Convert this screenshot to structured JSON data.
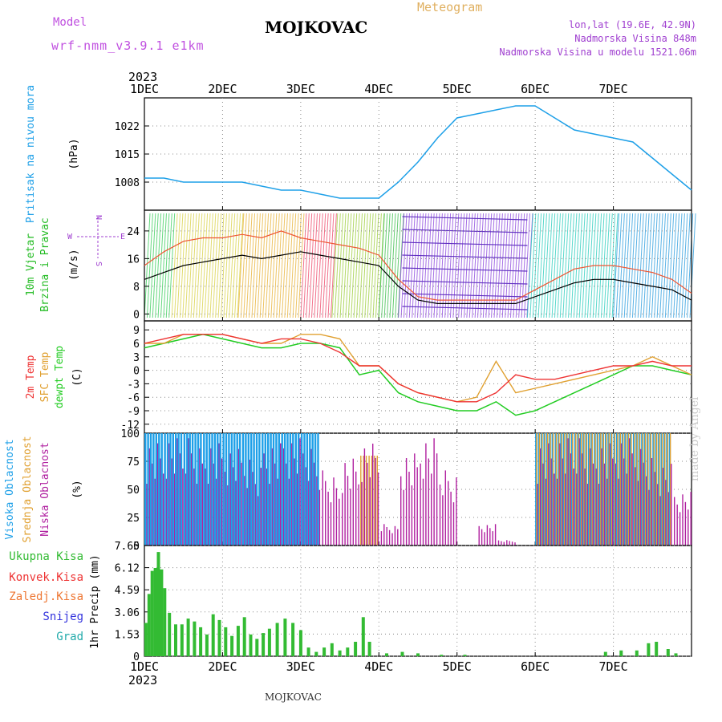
{
  "header": {
    "model_label": "Model",
    "model_name": "wrf-nmm_v3.9.1 e1km",
    "title": "MOJKOVAC",
    "meteogram": "Meteogram",
    "lonlat": "lon,lat (19.6E, 42.9N)",
    "elevation": "Nadmorska Visina 848m",
    "elevation_model": "Nadmorska Visina u modelu 1521.06m"
  },
  "footer": {
    "location": "MOJKOVAC",
    "watermark": "made by Angel"
  },
  "colors": {
    "model_label": "#c050e0",
    "title": "#000000",
    "meteogram": "#e0b060",
    "info": "#a040d0",
    "pressure": "#1ea0e8",
    "wind_label": "#22bb22",
    "wind_dir": "#a040d0",
    "t2m": "#ee3333",
    "tsfc": "#e0a030",
    "dewpt": "#22cc22",
    "high_cloud": "#1ea0e8",
    "mid_cloud": "#e0a030",
    "low_cloud": "#b020a0",
    "total_precip": "#33bb33",
    "conv_precip": "#ee3333",
    "frz_precip": "#ee7733",
    "snow": "#3333dd",
    "hail": "#22aaaa"
  },
  "chart_data": [
    {
      "type": "line",
      "panel": "pressure",
      "ylabel_name": "Pritisak na nivou mora",
      "unit": "(hPa)",
      "ylim": [
        1001,
        1029
      ],
      "yticks": [
        "1022",
        "1015",
        "1008"
      ],
      "grid": true,
      "x_top_year": "2023",
      "x_bottom_year": "2023",
      "xticks": [
        "1DEC",
        "2DEC",
        "3DEC",
        "4DEC",
        "5DEC",
        "6DEC",
        "7DEC"
      ],
      "x_days": [
        0,
        0.25,
        0.5,
        0.75,
        1.0,
        1.25,
        1.5,
        1.75,
        2.0,
        2.25,
        2.5,
        2.75,
        3.0,
        3.25,
        3.5,
        3.75,
        4.0,
        4.25,
        4.5,
        4.75,
        5.0,
        5.25,
        5.5,
        5.75,
        6.0,
        6.25,
        6.5,
        6.75,
        7.0
      ],
      "series": [
        {
          "values": [
            1009,
            1009,
            1008,
            1008,
            1008,
            1008,
            1007,
            1006,
            1006,
            1005,
            1004,
            1004,
            1004,
            1008,
            1013,
            1019,
            1024,
            1025,
            1026,
            1027,
            1027,
            1024,
            1021,
            1020,
            1019,
            1018,
            1014,
            1010,
            1006
          ]
        }
      ]
    },
    {
      "type": "line",
      "panel": "wind",
      "ylabel_name": "10m Vjetar Brzina i Pravac",
      "unit": "(m/s)",
      "direction_key": "N W E S",
      "ylim": [
        -2,
        30
      ],
      "yticks": [
        "24",
        "16",
        "8",
        "0"
      ],
      "grid": true,
      "x_days": [
        0,
        0.25,
        0.5,
        0.75,
        1.0,
        1.25,
        1.5,
        1.75,
        2.0,
        2.25,
        2.5,
        2.75,
        3.0,
        3.25,
        3.5,
        3.75,
        4.0,
        4.25,
        4.5,
        4.75,
        5.0,
        5.25,
        5.5,
        5.75,
        6.0,
        6.25,
        6.5,
        6.75,
        7.0
      ],
      "series": [
        {
          "values": [
            10,
            12,
            14,
            15,
            16,
            17,
            16,
            17,
            18,
            17,
            16,
            15,
            14,
            8,
            4,
            3,
            3,
            3,
            3,
            3,
            5,
            7,
            9,
            10,
            10,
            9,
            8,
            7,
            4
          ]
        },
        {
          "values": [
            14,
            18,
            21,
            22,
            22,
            23,
            22,
            24,
            22,
            21,
            20,
            19,
            17,
            10,
            5,
            4,
            4,
            4,
            4,
            4,
            7,
            10,
            13,
            14,
            14,
            13,
            12,
            10,
            6
          ]
        }
      ]
    },
    {
      "type": "line",
      "panel": "temperature",
      "ylabel_names": [
        "2m Temp",
        "SFC Temp",
        "dewpt Temp"
      ],
      "unit": "(C)",
      "ylim": [
        -14,
        11
      ],
      "yticks": [
        "9",
        "6",
        "3",
        "0",
        "-3",
        "-6",
        "-9",
        "-12"
      ],
      "grid": true,
      "x_days": [
        0,
        0.25,
        0.5,
        0.75,
        1.0,
        1.25,
        1.5,
        1.75,
        2.0,
        2.25,
        2.5,
        2.75,
        3.0,
        3.25,
        3.5,
        3.75,
        4.0,
        4.25,
        4.5,
        4.75,
        5.0,
        5.25,
        5.5,
        5.75,
        6.0,
        6.25,
        6.5,
        6.75,
        7.0
      ],
      "series": [
        {
          "name": "2m Temp",
          "values": [
            6,
            7,
            8,
            8,
            8,
            7,
            6,
            7,
            7,
            6,
            4,
            1,
            1,
            -3,
            -5,
            -6,
            -7,
            -7,
            -5,
            -1,
            -2,
            -2,
            -1,
            0,
            1,
            1,
            2,
            1,
            1
          ]
        },
        {
          "name": "SFC Temp",
          "values": [
            6,
            6,
            8,
            8,
            8,
            7,
            6,
            6,
            8,
            8,
            7,
            1,
            1,
            -3,
            -5,
            -6,
            -7,
            -6,
            2,
            -5,
            -4,
            -3,
            -2,
            -1,
            0,
            1,
            3,
            1,
            -1
          ]
        },
        {
          "name": "dewpt Temp",
          "values": [
            5,
            6,
            7,
            8,
            7,
            6,
            5,
            5,
            6,
            6,
            5,
            -1,
            0,
            -5,
            -7,
            -8,
            -9,
            -9,
            -7,
            -10,
            -9,
            -7,
            -5,
            -3,
            -1,
            1,
            1,
            0,
            -1
          ]
        }
      ]
    },
    {
      "type": "bar",
      "panel": "clouds",
      "ylabel_names": [
        "Visoka Oblacnost",
        "Srednja Oblacnost",
        "Niska Oblacnost"
      ],
      "unit": "(%)",
      "ylim": [
        0,
        100
      ],
      "yticks": [
        "100",
        "75",
        "50",
        "25",
        "0"
      ],
      "grid": true,
      "x_days": [
        0,
        0.25,
        0.5,
        0.75,
        1.0,
        1.25,
        1.5,
        1.75,
        2.0,
        2.25,
        2.5,
        2.75,
        3.0,
        3.25,
        3.5,
        3.75,
        4.0,
        4.25,
        4.5,
        4.75,
        5.0,
        5.25,
        5.5,
        5.75,
        6.0,
        6.25,
        6.5,
        6.75,
        7.0
      ],
      "series": [
        {
          "name": "Visoka Oblacnost",
          "values": [
            100,
            100,
            100,
            100,
            100,
            100,
            100,
            100,
            100,
            0,
            0,
            0,
            0,
            0,
            0,
            0,
            0,
            0,
            0,
            0,
            100,
            100,
            100,
            100,
            100,
            100,
            100,
            0,
            100
          ]
        },
        {
          "name": "Srednja Oblacnost",
          "values": [
            0,
            0,
            0,
            0,
            0,
            0,
            0,
            0,
            0,
            0,
            0,
            80,
            0,
            0,
            0,
            0,
            0,
            0,
            0,
            0,
            100,
            100,
            100,
            100,
            100,
            100,
            100,
            0,
            100
          ]
        },
        {
          "name": "Niska Oblacnost",
          "values": [
            100,
            100,
            100,
            100,
            90,
            80,
            100,
            100,
            90,
            70,
            85,
            95,
            20,
            90,
            100,
            70,
            0,
            20,
            5,
            0,
            100,
            100,
            100,
            100,
            100,
            90,
            80,
            50,
            100
          ]
        }
      ]
    },
    {
      "type": "bar",
      "panel": "precip",
      "ylabel_names": [
        "Ukupna Kisa",
        "Konvek.Kisa",
        "Zaledj.Kisa",
        "Snijeg",
        "Grad"
      ],
      "unit": "1hr Precip (mm)",
      "ylim": [
        0,
        7.65
      ],
      "yticks": [
        "7.65",
        "6.12",
        "4.59",
        "3.06",
        "1.53",
        "0"
      ],
      "grid": true,
      "x_days": [
        0.02,
        0.06,
        0.1,
        0.14,
        0.18,
        0.22,
        0.26,
        0.32,
        0.4,
        0.48,
        0.56,
        0.64,
        0.72,
        0.8,
        0.88,
        0.96,
        1.04,
        1.12,
        1.2,
        1.28,
        1.36,
        1.44,
        1.52,
        1.6,
        1.7,
        1.8,
        1.9,
        2.0,
        2.1,
        2.2,
        2.3,
        2.4,
        2.5,
        2.6,
        2.7,
        2.8,
        2.88,
        3.1,
        3.3,
        3.5,
        3.8,
        4.1,
        5.9,
        6.1,
        6.3,
        6.45,
        6.55,
        6.7,
        6.8
      ],
      "series": [
        {
          "name": "Ukupna Kisa",
          "values": [
            2.3,
            4.3,
            5.9,
            6.1,
            7.2,
            6.0,
            4.7,
            3.0,
            2.2,
            2.2,
            2.6,
            2.4,
            2.0,
            1.5,
            2.9,
            2.5,
            2.0,
            1.4,
            2.1,
            2.7,
            1.5,
            1.2,
            1.6,
            1.9,
            2.3,
            2.6,
            2.3,
            1.8,
            0.6,
            0.3,
            0.6,
            0.9,
            0.4,
            0.6,
            1.0,
            2.7,
            1.0,
            0.2,
            0.3,
            0.2,
            0.1,
            0.1,
            0.3,
            0.4,
            0.4,
            0.9,
            1.0,
            0.5,
            0.2
          ]
        }
      ]
    }
  ]
}
